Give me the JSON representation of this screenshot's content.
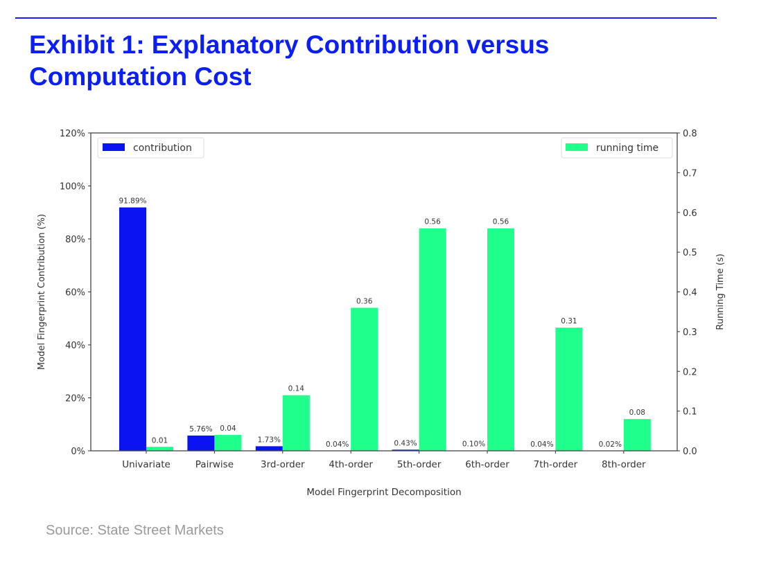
{
  "title": "Exhibit 1: Explanatory Contribution versus Computation Cost",
  "source": "Source: State Street Markets",
  "colors": {
    "accent": "#0a1ef5",
    "contribution": "#0a14f0",
    "running_time": "#1eff8c"
  },
  "chart_data": {
    "type": "bar",
    "categories": [
      "Univariate",
      "Pairwise",
      "3rd-order",
      "4th-order",
      "5th-order",
      "6th-order",
      "7th-order",
      "8th-order"
    ],
    "series": [
      {
        "name": "contribution",
        "axis": "left",
        "values": [
          91.89,
          5.76,
          1.73,
          0.04,
          0.43,
          0.1,
          0.04,
          0.02
        ],
        "labels": [
          "91.89%",
          "5.76%",
          "1.73%",
          "0.04%",
          "0.43%",
          "0.10%",
          "0.04%",
          "0.02%"
        ]
      },
      {
        "name": "running time",
        "axis": "right",
        "values": [
          0.01,
          0.04,
          0.14,
          0.36,
          0.56,
          0.56,
          0.31,
          0.08
        ],
        "labels": [
          "0.01",
          "0.04",
          "0.14",
          "0.36",
          "0.56",
          "0.56",
          "0.31",
          "0.08"
        ]
      }
    ],
    "xlabel": "Model Fingerprint Decomposition",
    "ylabel": "Model Fingerprint Contribution (%)",
    "y2label": "Running Time (s)",
    "ylim": [
      0,
      120
    ],
    "y2lim": [
      0,
      0.8
    ],
    "yticks": [
      "0%",
      "20%",
      "40%",
      "60%",
      "80%",
      "100%",
      "120%"
    ],
    "y2ticks": [
      "0.0",
      "0.1",
      "0.2",
      "0.3",
      "0.4",
      "0.5",
      "0.6",
      "0.7",
      "0.8"
    ],
    "legend": [
      {
        "label": "contribution",
        "placement": "top-left"
      },
      {
        "label": "running time",
        "placement": "top-right"
      }
    ],
    "grid": false
  }
}
